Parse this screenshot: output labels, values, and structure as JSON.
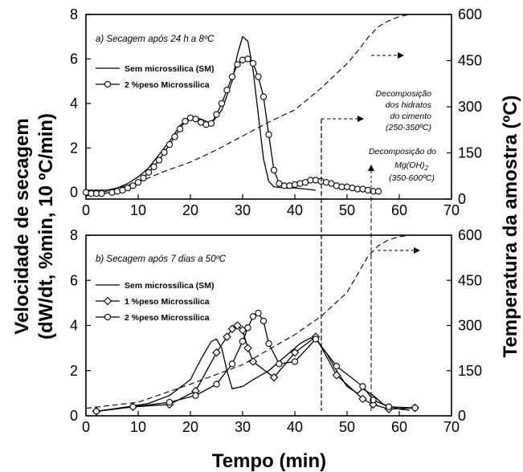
{
  "chart_data": [
    {
      "type": "line",
      "title": "a) Secagem após 24 h  a 8ºC",
      "xlabel": "Tempo (min)",
      "ylabel": "Velocidade de secagem (dW/dt, %min, 10 ºC/min)",
      "y2label": "Temperatura da amostra (ºC)",
      "xlim": [
        0,
        70
      ],
      "ylim": [
        -0.3,
        8
      ],
      "y2lim": [
        0,
        600
      ],
      "x_ticks": [
        "0",
        "10",
        "20",
        "30",
        "40",
        "50",
        "60",
        "70"
      ],
      "y_ticks": [
        "0",
        "2",
        "4",
        "6",
        "8"
      ],
      "y2_ticks": [
        "0",
        "150",
        "300",
        "450",
        "600"
      ],
      "legend_position": "top-left",
      "series": [
        {
          "name": "Sem microssílica (SM)",
          "axis": "left",
          "style": "solid",
          "x": [
            0,
            4,
            6,
            8,
            10,
            12,
            14,
            16,
            18,
            20,
            22,
            24,
            26,
            28,
            29,
            30,
            31,
            32,
            33,
            34,
            35,
            36,
            38,
            40,
            42,
            44
          ],
          "y": [
            0.1,
            0.1,
            0.2,
            0.4,
            0.7,
            1.1,
            1.7,
            2.3,
            3.0,
            3.4,
            3.3,
            3.1,
            3.7,
            5.0,
            6.2,
            7.0,
            6.8,
            5.5,
            3.5,
            1.5,
            0.5,
            0.25,
            0.2,
            0.2,
            0.15,
            0.1
          ]
        },
        {
          "name": "2 %peso Microssílica",
          "axis": "left",
          "style": "solid-circles",
          "x": [
            0,
            1,
            2,
            3,
            5,
            6,
            7,
            8,
            9,
            10,
            11,
            12,
            13,
            14,
            15,
            16,
            17,
            18,
            19,
            20,
            21,
            22,
            23,
            24,
            25,
            26,
            27,
            28,
            29,
            30,
            31,
            32,
            33,
            34,
            35,
            36,
            37,
            38,
            39,
            40,
            41,
            42,
            43,
            44,
            45,
            46,
            47,
            48,
            49,
            50,
            51,
            52,
            53,
            54,
            55,
            56
          ],
          "y": [
            0.0,
            -0.05,
            -0.05,
            -0.05,
            0.0,
            0.05,
            0.1,
            0.2,
            0.3,
            0.45,
            0.65,
            0.9,
            1.15,
            1.45,
            1.8,
            2.15,
            2.5,
            2.85,
            3.2,
            3.35,
            3.3,
            3.15,
            3.05,
            3.1,
            3.5,
            4.0,
            4.6,
            5.2,
            5.75,
            5.95,
            6.0,
            5.8,
            5.2,
            4.3,
            2.6,
            1.0,
            0.4,
            0.3,
            0.3,
            0.35,
            0.4,
            0.45,
            0.55,
            0.55,
            0.5,
            0.45,
            0.4,
            0.3,
            0.25,
            0.25,
            0.2,
            0.15,
            0.15,
            0.1,
            0.05,
            0.05
          ]
        },
        {
          "name": "Temperatura",
          "axis": "right",
          "style": "dashed",
          "x": [
            0,
            5,
            10,
            15,
            20,
            25,
            30,
            35,
            40,
            45,
            50,
            52,
            54,
            56,
            58,
            60,
            62
          ],
          "y": [
            10,
            30,
            55,
            90,
            120,
            160,
            205,
            250,
            290,
            360,
            440,
            480,
            525,
            560,
            580,
            593,
            600
          ]
        }
      ],
      "annotations": [
        {
          "lines": [
            "Decomposição",
            "dos hidratos",
            "do cimento",
            "(250-350ºC)"
          ],
          "x": 44
        },
        {
          "lines": [
            "Decomposição do",
            "Mg(OH)",
            "(350-600ºC)"
          ],
          "x": 54
        }
      ]
    },
    {
      "type": "line",
      "title": "b) Secagem após 7 dias a 50ºC",
      "xlabel": "Tempo (min)",
      "ylabel": "Velocidade de secagem (dW/dt, %min, 10 ºC/min)",
      "y2label": "Temperatura da amostra (ºC)",
      "xlim": [
        0,
        70
      ],
      "ylim": [
        0,
        8
      ],
      "y2lim": [
        0,
        600
      ],
      "x_ticks": [
        "0",
        "10",
        "20",
        "30",
        "40",
        "50",
        "60",
        "70"
      ],
      "y_ticks": [
        "0",
        "2",
        "4",
        "6",
        "8"
      ],
      "y2_ticks": [
        "0",
        "150",
        "300",
        "450",
        "600"
      ],
      "legend_position": "top-left",
      "series": [
        {
          "name": "Sem microssílica (SM)",
          "axis": "left",
          "style": "solid",
          "x": [
            2,
            8,
            12,
            16,
            20,
            22,
            24,
            25,
            26,
            27,
            28,
            30,
            32,
            35,
            38,
            41,
            43,
            44,
            46,
            48,
            50,
            52,
            53,
            55,
            57,
            60,
            62
          ],
          "y": [
            0.2,
            0.4,
            0.55,
            0.9,
            1.6,
            2.5,
            3.3,
            3.4,
            3.0,
            2.0,
            1.2,
            1.3,
            1.6,
            2.0,
            2.6,
            3.2,
            3.45,
            3.4,
            2.8,
            2.0,
            1.3,
            1.0,
            1.2,
            0.9,
            0.5,
            0.3,
            0.25
          ]
        },
        {
          "name": "1 %peso Microssílica",
          "axis": "left",
          "style": "solid-diamonds",
          "x": [
            2,
            9,
            16,
            21,
            25,
            27,
            28,
            29,
            30,
            31,
            32,
            36,
            40,
            44,
            48,
            53,
            55,
            58,
            63
          ],
          "y": [
            0.2,
            0.4,
            0.5,
            1.1,
            2.8,
            3.5,
            3.85,
            4.0,
            3.8,
            3.0,
            2.4,
            1.7,
            2.8,
            3.5,
            1.8,
            0.75,
            0.5,
            0.3,
            0.35
          ]
        },
        {
          "name": "2 %peso Microssílica",
          "axis": "left",
          "style": "solid-circles",
          "x": [
            2,
            9,
            16,
            21,
            25,
            28,
            30,
            31,
            32,
            33,
            34,
            35,
            37,
            40,
            44,
            48,
            53,
            55,
            58,
            63
          ],
          "y": [
            0.2,
            0.4,
            0.6,
            0.9,
            1.4,
            2.3,
            3.3,
            3.9,
            4.4,
            4.55,
            4.2,
            3.2,
            2.3,
            2.4,
            3.4,
            2.2,
            1.3,
            0.7,
            0.4,
            0.35
          ]
        },
        {
          "name": "Temperatura",
          "axis": "right",
          "style": "dashed",
          "x": [
            0,
            10,
            20,
            30,
            35,
            40,
            45,
            50,
            52,
            54,
            56,
            58,
            60,
            62
          ],
          "y": [
            25,
            45,
            105,
            170,
            220,
            270,
            330,
            410,
            470,
            530,
            565,
            585,
            595,
            600
          ]
        }
      ]
    }
  ],
  "labels": {
    "ylabel_line1": "Velocidade de secagem",
    "ylabel_line2": "(dW/dt, %min, 10 ºC/min)",
    "y2label": "Temperatura da amostra (ºC)",
    "xlabel": "Tempo (min)",
    "ann1_l1": "Decomposição",
    "ann1_l2": "dos hidratos",
    "ann1_l3": "do cimento",
    "ann1_l4": "(250-350ºC)",
    "ann2_l1": "Decomposição do",
    "ann2_l2": "Mg(OH)",
    "ann2_sub": "2",
    "ann2_l3": "(350-600ºC)"
  }
}
